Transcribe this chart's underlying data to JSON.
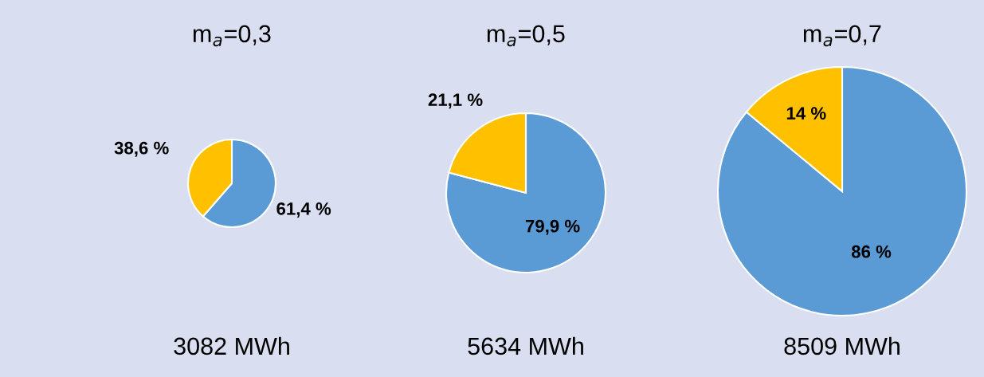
{
  "chart_data": [
    {
      "type": "pie",
      "title": "m$_{a}$=0,3",
      "categories": [
        null,
        null
      ],
      "values": [
        61.4,
        38.6
      ],
      "colors": [
        "#5b9bd5",
        "#ffc000"
      ],
      "value_labels": [
        "61,4 %",
        "38,6 %"
      ],
      "annotations": [
        "3082 MWh"
      ]
    },
    {
      "type": "pie",
      "title": "m$_{a}$=0,5",
      "categories": [
        null,
        null
      ],
      "values": [
        79.9,
        21.1
      ],
      "colors": [
        "#5b9bd5",
        "#ffc000"
      ],
      "value_labels": [
        "79,9 %",
        "21,1 %"
      ],
      "annotations": [
        "5634 MWh"
      ]
    },
    {
      "type": "pie",
      "title": "m$_{a}$=0,7",
      "categories": [
        null,
        null
      ],
      "values": [
        86,
        14
      ],
      "colors": [
        "#5b9bd5",
        "#ffc000"
      ],
      "value_labels": [
        "86 %",
        "14 %"
      ],
      "annotations": [
        "8509 MWh"
      ]
    }
  ]
}
